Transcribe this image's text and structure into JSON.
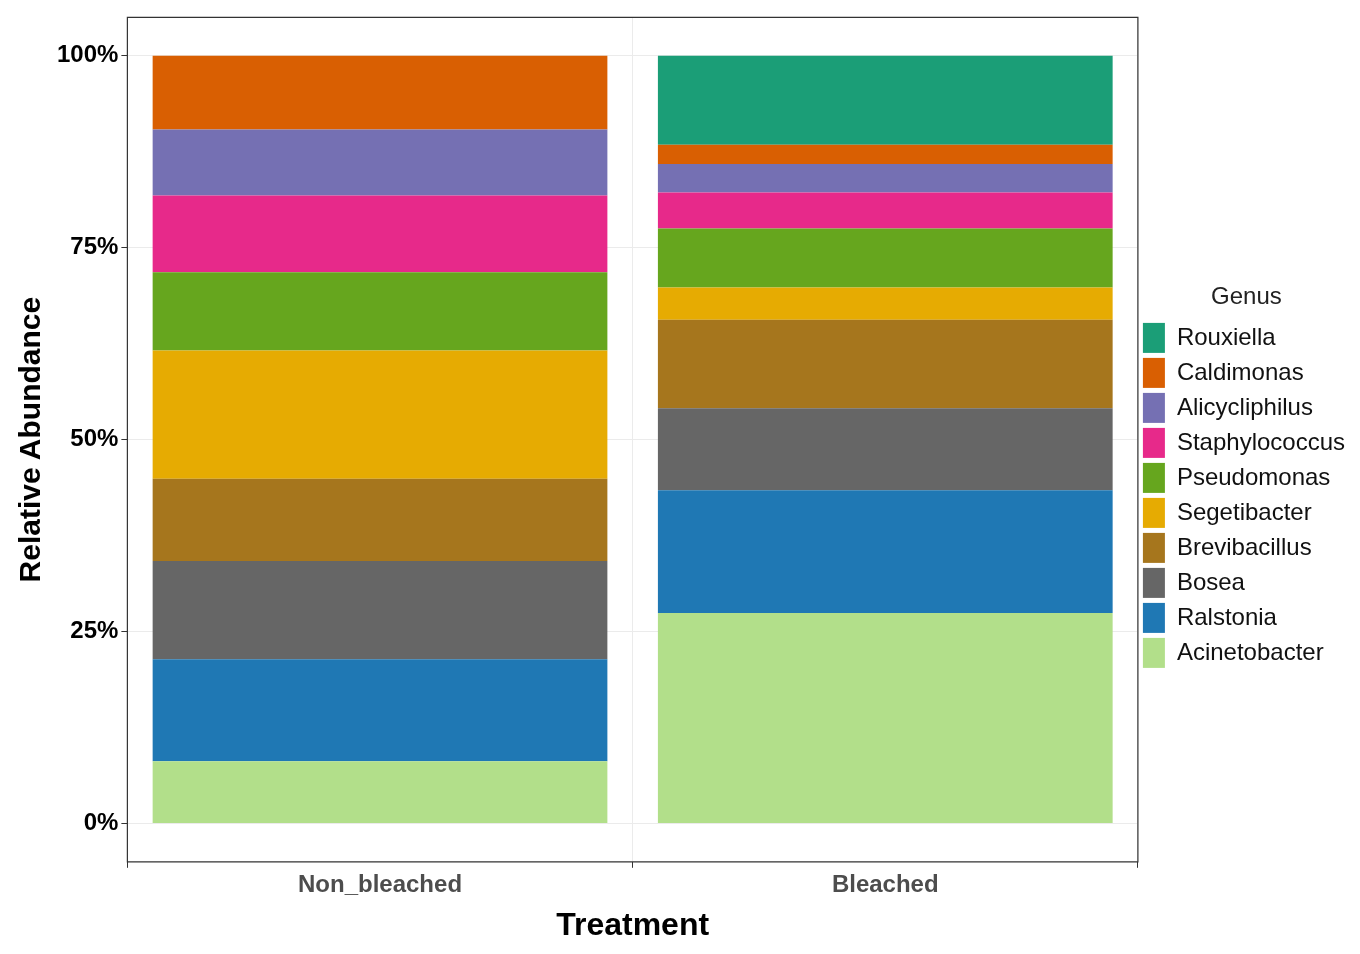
{
  "chart_data": {
    "type": "bar",
    "stacked": true,
    "xlabel": "Treatment",
    "ylabel": "Relative Abundance",
    "legend_title": "Genus",
    "legend": "right",
    "grid": true,
    "categories": [
      "Non_bleached",
      "Bleached"
    ],
    "ylim": [
      -5,
      105
    ],
    "yticks": [
      {
        "value": 0,
        "label": "0%"
      },
      {
        "value": 25,
        "label": "25%"
      },
      {
        "value": 50,
        "label": "50%"
      },
      {
        "value": 75,
        "label": "75%"
      },
      {
        "value": 100,
        "label": "100%"
      }
    ],
    "series": [
      {
        "name": "Acinetobacter",
        "color": "#b2df8a",
        "values": [
          8.1,
          27.4
        ]
      },
      {
        "name": "Ralstonia",
        "color": "#1f78b4",
        "values": [
          13.3,
          16.0
        ]
      },
      {
        "name": "Bosea",
        "color": "#666666",
        "values": [
          12.8,
          10.7
        ]
      },
      {
        "name": "Brevibacillus",
        "color": "#a6761d",
        "values": [
          10.7,
          11.5
        ]
      },
      {
        "name": "Segetibacter",
        "color": "#e6ab02",
        "values": [
          16.7,
          4.2
        ]
      },
      {
        "name": "Pseudomonas",
        "color": "#66a61e",
        "values": [
          10.2,
          7.7
        ]
      },
      {
        "name": "Staphylococcus",
        "color": "#e7298a",
        "values": [
          10.0,
          4.7
        ]
      },
      {
        "name": "Alicycliphilus",
        "color": "#7570b3",
        "values": [
          8.6,
          3.7
        ]
      },
      {
        "name": "Caldimonas",
        "color": "#d95f02",
        "values": [
          9.6,
          2.5
        ]
      },
      {
        "name": "Rouxiella",
        "color": "#1b9e77",
        "values": [
          0,
          11.6
        ]
      }
    ]
  }
}
